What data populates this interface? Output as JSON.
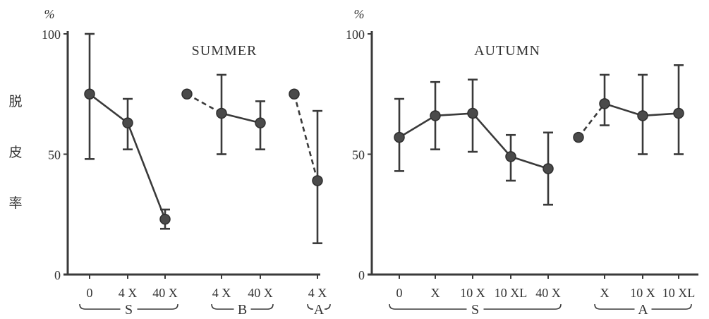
{
  "chart_data": [
    {
      "type": "line",
      "title": "SUMMER",
      "unit": "%",
      "ylabel": "脱皮率",
      "ylim": [
        0,
        100
      ],
      "yticks": [
        0,
        50,
        100
      ],
      "xticks": [
        "0",
        "4 X",
        "40 X",
        "4 X",
        "40 X",
        "4 X"
      ],
      "groups": [
        {
          "label": "S",
          "ticks": [
            0,
            1,
            2
          ]
        },
        {
          "label": "B",
          "ticks": [
            3,
            4
          ]
        },
        {
          "label": "A",
          "ticks": [
            5
          ]
        }
      ],
      "series": [
        {
          "group": "S",
          "points": [
            {
              "tick": 0,
              "y": 75,
              "err": [
                48,
                100
              ]
            },
            {
              "tick": 1,
              "y": 63,
              "err": [
                52,
                73
              ]
            },
            {
              "tick": 2,
              "y": 23,
              "err": [
                19,
                27
              ]
            }
          ]
        },
        {
          "group": "B",
          "control": 75,
          "points": [
            {
              "tick": 3,
              "y": 67,
              "err": [
                50,
                83
              ]
            },
            {
              "tick": 4,
              "y": 63,
              "err": [
                52,
                72
              ]
            }
          ]
        },
        {
          "group": "A",
          "control": 75,
          "points": [
            {
              "tick": 5,
              "y": 39,
              "err": [
                13,
                68
              ]
            }
          ]
        }
      ]
    },
    {
      "type": "line",
      "title": "AUTUMN",
      "unit": "%",
      "ylabel": "",
      "ylim": [
        0,
        100
      ],
      "yticks": [
        0,
        50,
        100
      ],
      "xticks": [
        "0",
        "X",
        "10 X",
        "10 XL",
        "40 X",
        "X",
        "10 X",
        "10 XL"
      ],
      "groups": [
        {
          "label": "S",
          "ticks": [
            0,
            1,
            2,
            3,
            4
          ]
        },
        {
          "label": "A",
          "ticks": [
            5,
            6,
            7
          ]
        }
      ],
      "series": [
        {
          "group": "S",
          "points": [
            {
              "tick": 0,
              "y": 57,
              "err": [
                43,
                73
              ]
            },
            {
              "tick": 1,
              "y": 66,
              "err": [
                52,
                80
              ]
            },
            {
              "tick": 2,
              "y": 67,
              "err": [
                51,
                81
              ]
            },
            {
              "tick": 3,
              "y": 49,
              "err": [
                39,
                58
              ]
            },
            {
              "tick": 4,
              "y": 44,
              "err": [
                29,
                59
              ]
            }
          ]
        },
        {
          "group": "A",
          "control": 57,
          "points": [
            {
              "tick": 5,
              "y": 71,
              "err": [
                62,
                83
              ]
            },
            {
              "tick": 6,
              "y": 66,
              "err": [
                50,
                83
              ]
            },
            {
              "tick": 7,
              "y": 67,
              "err": [
                50,
                87
              ]
            }
          ]
        }
      ]
    }
  ]
}
